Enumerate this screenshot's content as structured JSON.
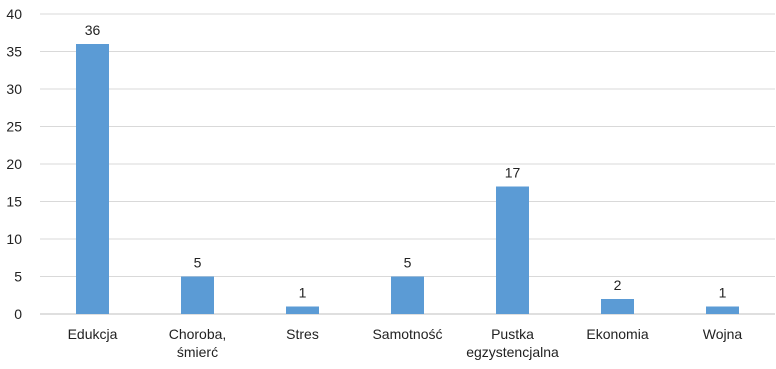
{
  "chart_data": {
    "type": "bar",
    "categories": [
      [
        "Edukcja"
      ],
      [
        "Choroba,",
        "śmierć"
      ],
      [
        "Stres"
      ],
      [
        "Samotność"
      ],
      [
        "Pustka",
        "egzystencjalna"
      ],
      [
        "Ekonomia"
      ],
      [
        "Wojna"
      ]
    ],
    "values": [
      36,
      5,
      1,
      5,
      17,
      2,
      1
    ],
    "data_labels": [
      "36",
      "5",
      "1",
      "5",
      "17",
      "2",
      "1"
    ],
    "ylim": [
      0,
      40
    ],
    "y_ticks": [
      "0",
      "5",
      "10",
      "15",
      "20",
      "25",
      "30",
      "35",
      "40"
    ],
    "grid": true,
    "legend": "none",
    "colors": {
      "bar": "#5b9bd5",
      "grid": "#d9d9d9",
      "axis": "#bfbfbf",
      "text": "#222222"
    }
  }
}
